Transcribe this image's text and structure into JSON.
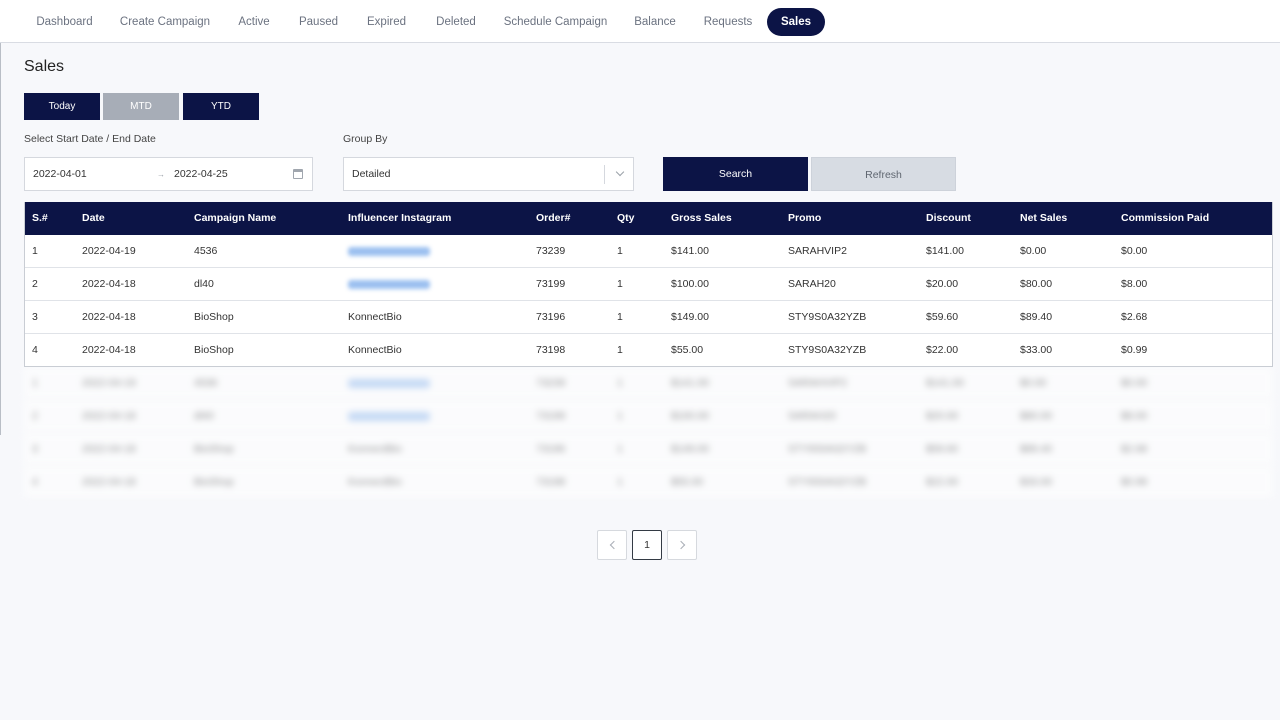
{
  "nav": {
    "items": [
      {
        "label": "Dashboard",
        "active": false
      },
      {
        "label": "Create Campaign",
        "active": false
      },
      {
        "label": "Active",
        "active": false
      },
      {
        "label": "Paused",
        "active": false
      },
      {
        "label": "Expired",
        "active": false
      },
      {
        "label": "Deleted",
        "active": false
      },
      {
        "label": "Schedule Campaign",
        "active": false
      },
      {
        "label": "Balance",
        "active": false
      },
      {
        "label": "Requests",
        "active": false
      },
      {
        "label": "Sales",
        "active": true
      }
    ]
  },
  "page": {
    "title": "Sales"
  },
  "period": {
    "today": "Today",
    "mtd": "MTD",
    "ytd": "YTD",
    "selected": "Today"
  },
  "filters": {
    "date_label": "Select Start Date / End Date",
    "start_date": "2022-04-01",
    "date_separator": "→",
    "end_date": "2022-04-25",
    "group_label": "Group By",
    "group_value": "Detailed"
  },
  "actions": {
    "search": "Search",
    "refresh": "Refresh"
  },
  "table": {
    "headers": [
      "S.#",
      "Date",
      "Campaign Name",
      "Influencer Instagram",
      "Order#",
      "Qty",
      "Gross Sales",
      "Promo",
      "Discount",
      "Net Sales",
      "Commission Paid"
    ],
    "rows": [
      [
        "1",
        "2022-04-19",
        "4536",
        "",
        "73239",
        "1",
        "$141.00",
        "SARAHVIP2",
        "$141.00",
        "$0.00",
        "$0.00"
      ],
      [
        "2",
        "2022-04-18",
        "dl40",
        "",
        "73199",
        "1",
        "$100.00",
        "SARAH20",
        "$20.00",
        "$80.00",
        "$8.00"
      ],
      [
        "3",
        "2022-04-18",
        "BioShop",
        "KonnectBio",
        "73196",
        "1",
        "$149.00",
        "STY9S0A32YZB",
        "$59.60",
        "$89.40",
        "$2.68"
      ],
      [
        "4",
        "2022-04-18",
        "BioShop",
        "KonnectBio",
        "73198",
        "1",
        "$55.00",
        "STY9S0A32YZB",
        "$22.00",
        "$33.00",
        "$0.99"
      ]
    ],
    "blurred_rows": [
      [
        "1",
        "2022-04-19",
        "4536",
        "",
        "73239",
        "1",
        "$141.00",
        "SARAHVIP2",
        "$141.00",
        "$0.00",
        "$0.00"
      ],
      [
        "2",
        "2022-04-18",
        "dl40",
        "",
        "73199",
        "1",
        "$100.00",
        "SARAH20",
        "$20.00",
        "$80.00",
        "$8.00"
      ],
      [
        "3",
        "2022-04-18",
        "BioShop",
        "KonnectBio",
        "73196",
        "1",
        "$149.00",
        "STY9S0A32YZB",
        "$59.60",
        "$89.40",
        "$2.68"
      ],
      [
        "4",
        "2022-04-18",
        "BioShop",
        "KonnectBio",
        "73198",
        "1",
        "$55.00",
        "STY9S0A32YZB",
        "$22.00",
        "$33.00",
        "$0.99"
      ]
    ]
  },
  "pagination": {
    "current": "1"
  },
  "colors": {
    "primary": "#0c1446",
    "muted_button": "#a7adb7",
    "link": "#6aa0ea"
  }
}
